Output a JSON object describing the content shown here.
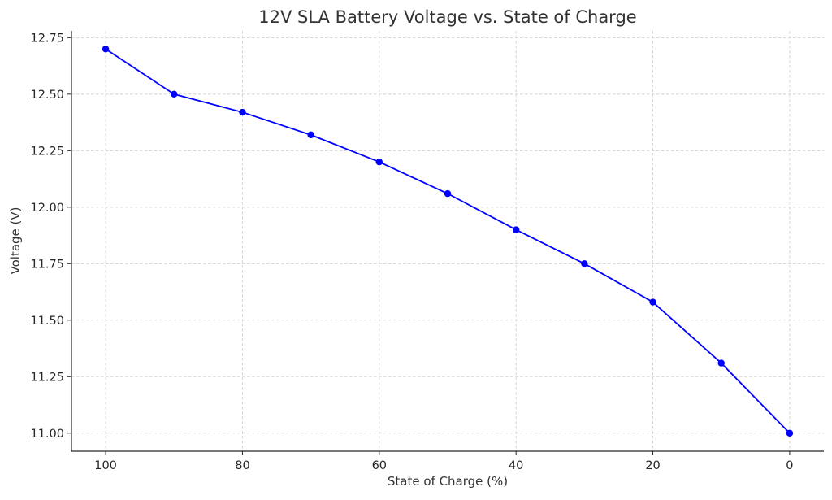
{
  "chart_data": {
    "type": "line",
    "title": "12V SLA Battery Voltage vs. State of Charge",
    "xlabel": "State of Charge (%)",
    "ylabel": "Voltage (V)",
    "x_inverted": true,
    "xlim": [
      105,
      -5
    ],
    "ylim": [
      10.92,
      12.78
    ],
    "xticks": [
      100,
      80,
      60,
      40,
      20,
      0
    ],
    "xtick_labels": [
      "100",
      "80",
      "60",
      "40",
      "20",
      "0"
    ],
    "yticks": [
      11.0,
      11.25,
      11.5,
      11.75,
      12.0,
      12.25,
      12.5,
      12.75
    ],
    "ytick_labels": [
      "11.00",
      "11.25",
      "11.50",
      "11.75",
      "12.00",
      "12.25",
      "12.50",
      "12.75"
    ],
    "grid": true,
    "series": [
      {
        "color": "#0000ff",
        "marker": "circle",
        "x": [
          100,
          90,
          80,
          70,
          60,
          50,
          40,
          30,
          20,
          10,
          0
        ],
        "y": [
          12.7,
          12.5,
          12.42,
          12.32,
          12.2,
          12.06,
          11.9,
          11.75,
          11.58,
          11.31,
          11.0
        ]
      }
    ]
  }
}
